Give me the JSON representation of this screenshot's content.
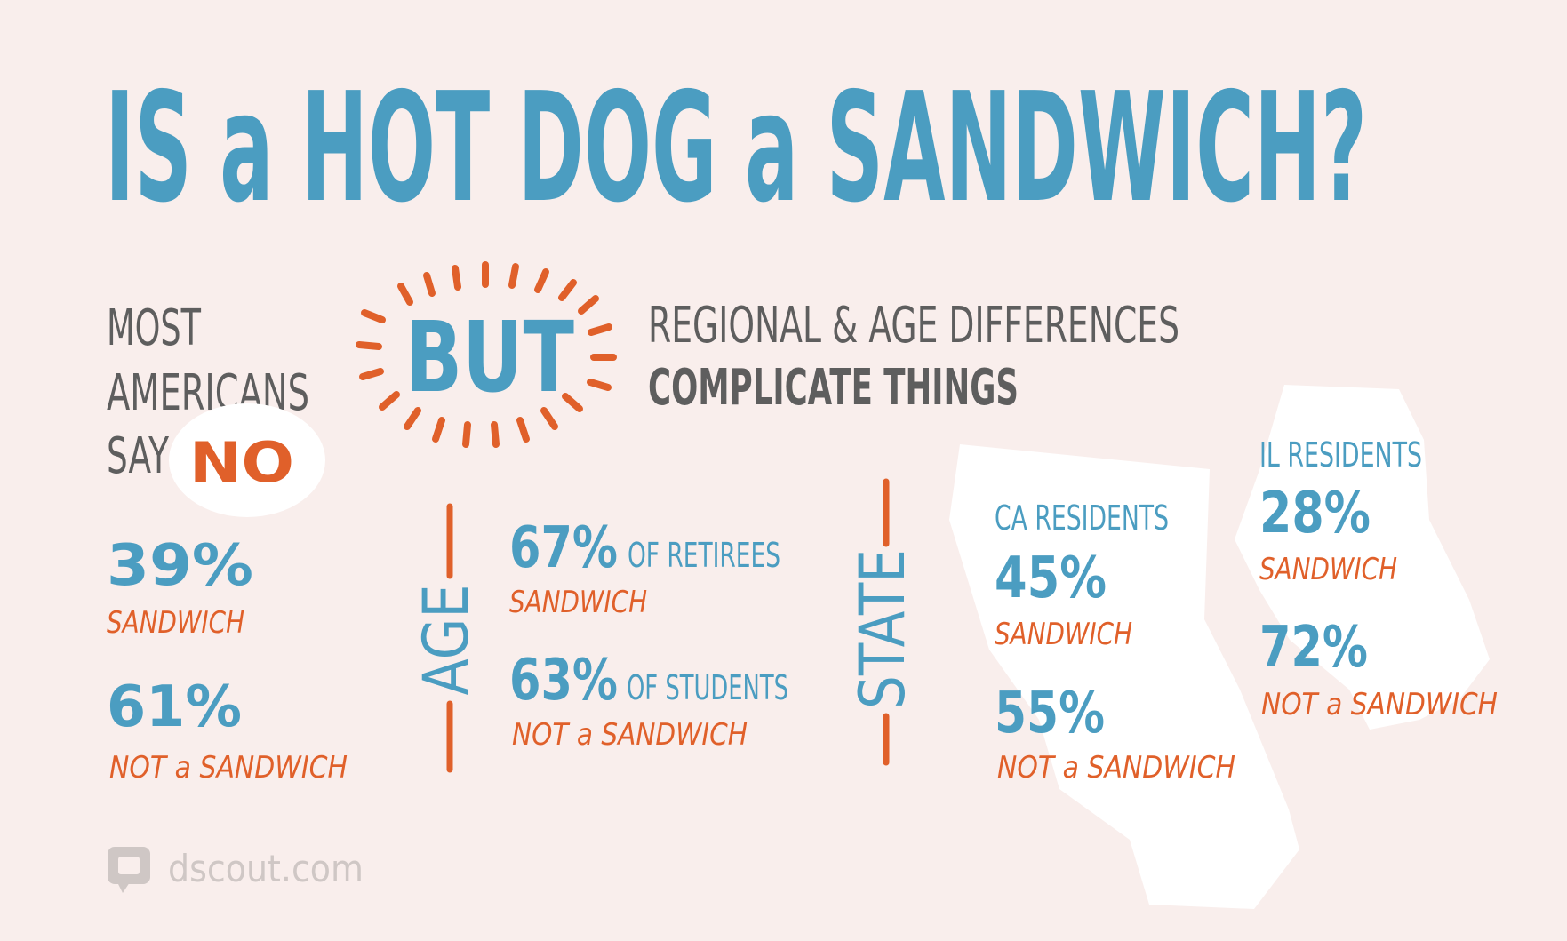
{
  "title": "IS a HOT DOG a SANDWICH?",
  "intro": {
    "left_lines": [
      "MOST",
      "AMERICANS",
      "SAY"
    ],
    "left_emphasis": "NO",
    "but": "BUT",
    "right_lines": [
      "REGIONAL & AGE DIFFERENCES",
      "COMPLICATE THINGS"
    ]
  },
  "overall": [
    {
      "value": "39%",
      "label": "SANDWICH"
    },
    {
      "value": "61%",
      "label": "NOT a SANDWICH"
    }
  ],
  "age": {
    "heading": "AGE",
    "items": [
      {
        "value": "67%",
        "group": "OF RETIREES",
        "label": "SANDWICH"
      },
      {
        "value": "63%",
        "group": "OF STUDENTS",
        "label": "NOT a SANDWICH"
      }
    ]
  },
  "state": {
    "heading": "STATE",
    "regions": [
      {
        "name": "CA RESIDENTS",
        "items": [
          {
            "value": "45%",
            "label": "SANDWICH"
          },
          {
            "value": "55%",
            "label": "NOT a SANDWICH"
          }
        ]
      },
      {
        "name": "IL RESIDENTS",
        "items": [
          {
            "value": "28%",
            "label": "SANDWICH"
          },
          {
            "value": "72%",
            "label": "NOT a SANDWICH"
          }
        ]
      }
    ]
  },
  "footer": {
    "brand": "dscout.com"
  }
}
